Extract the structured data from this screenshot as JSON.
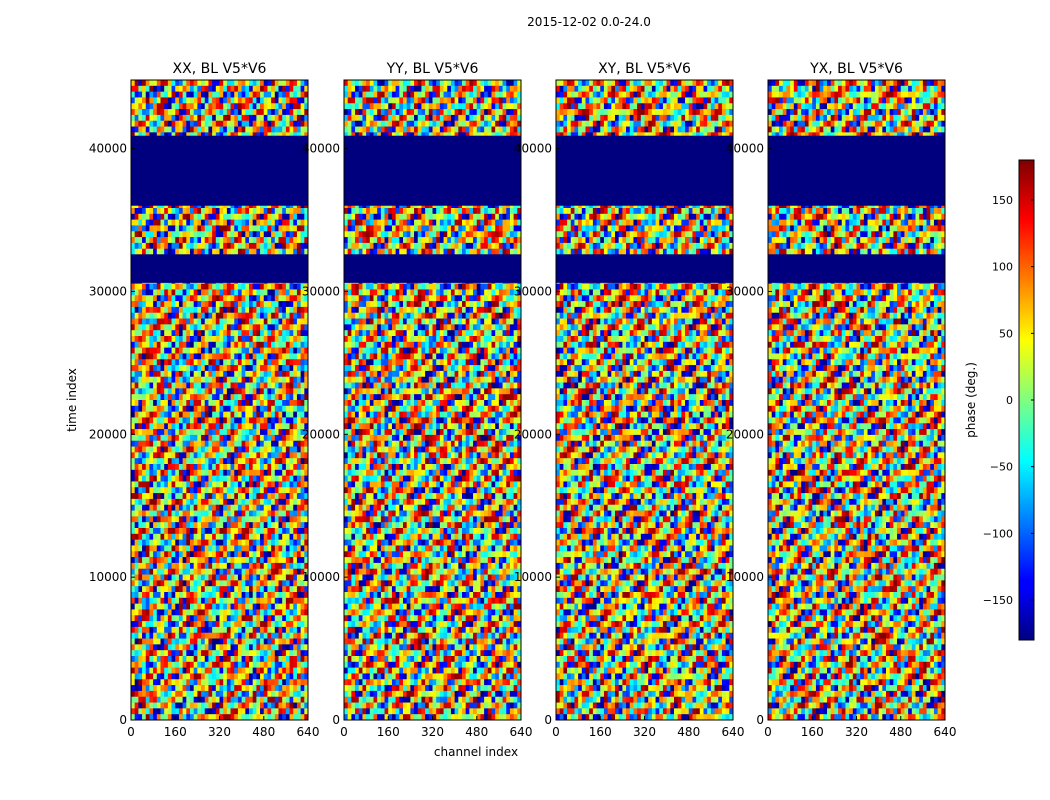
{
  "figure": {
    "suptitle": "2015-12-02 0.0-24.0",
    "xlabel": "channel index",
    "ylabel": "time index"
  },
  "chart_data": {
    "type": "heatmap",
    "colormap": "jet",
    "x_ticks": [
      "0",
      "160",
      "320",
      "480",
      "640"
    ],
    "y_ticks": [
      "0",
      "10000",
      "20000",
      "30000",
      "40000"
    ],
    "xlim": [
      0,
      640
    ],
    "ylim": [
      0,
      44800
    ],
    "panels": [
      {
        "title": "XX, BL V5*V6",
        "pol": "XX"
      },
      {
        "title": "YY, BL V5*V6",
        "pol": "YY"
      },
      {
        "title": "XY, BL V5*V6",
        "pol": "XY"
      },
      {
        "title": "YX, BL V5*V6",
        "pol": "YX"
      }
    ],
    "flagged_time_ranges": [
      [
        30600,
        32600
      ],
      [
        36000,
        40900
      ]
    ],
    "colorbar": {
      "label": "phase (deg.)",
      "range": [
        -180,
        180
      ],
      "ticks": [
        "150",
        "100",
        "50",
        "0",
        "−50",
        "−100",
        "−150"
      ],
      "tick_values": [
        150,
        100,
        50,
        0,
        -50,
        -100,
        -150
      ]
    }
  }
}
